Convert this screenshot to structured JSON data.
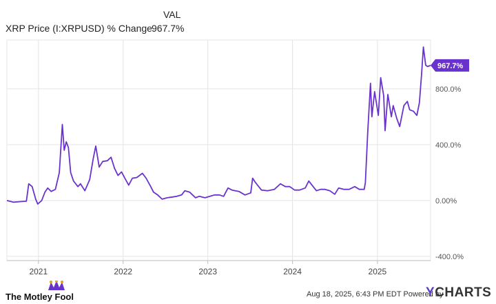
{
  "header": {
    "column_label": "VAL",
    "series_label": "XRP Price (I:XRPUSD) % Change",
    "series_value": "967.7%"
  },
  "colors": {
    "line": "#6a32cc",
    "grid": "#e4e4e4",
    "axis": "#bbbbbb",
    "badge": "#6a32cc"
  },
  "chart_data": {
    "type": "line",
    "title": "",
    "xlabel": "",
    "ylabel": "",
    "x_ticks": [
      "2021",
      "2022",
      "2023",
      "2024",
      "2025"
    ],
    "y_ticks": [
      "-400.0%",
      "0.00%",
      "400.0%",
      "800.0%"
    ],
    "y_tick_values": [
      -400,
      0,
      400,
      800
    ],
    "ylim": [
      -430,
      1150
    ],
    "xlim": [
      "2020-08-18",
      "2025-08-18"
    ],
    "last_value_label": "967.7%",
    "series": [
      {
        "name": "XRP Price (I:XRPUSD) % Change",
        "points": [
          [
            "2020-08-18",
            0
          ],
          [
            "2020-09-15",
            -12
          ],
          [
            "2020-10-15",
            -8
          ],
          [
            "2020-11-10",
            -5
          ],
          [
            "2020-11-20",
            120
          ],
          [
            "2020-12-05",
            100
          ],
          [
            "2020-12-20",
            10
          ],
          [
            "2020-12-29",
            -25
          ],
          [
            "2021-01-15",
            0
          ],
          [
            "2021-01-29",
            60
          ],
          [
            "2021-02-10",
            90
          ],
          [
            "2021-02-25",
            65
          ],
          [
            "2021-03-15",
            80
          ],
          [
            "2021-04-01",
            200
          ],
          [
            "2021-04-14",
            545
          ],
          [
            "2021-04-22",
            360
          ],
          [
            "2021-05-01",
            420
          ],
          [
            "2021-05-10",
            380
          ],
          [
            "2021-05-20",
            200
          ],
          [
            "2021-06-01",
            140
          ],
          [
            "2021-06-20",
            100
          ],
          [
            "2021-07-01",
            120
          ],
          [
            "2021-07-20",
            70
          ],
          [
            "2021-08-10",
            150
          ],
          [
            "2021-08-25",
            300
          ],
          [
            "2021-09-05",
            390
          ],
          [
            "2021-09-20",
            240
          ],
          [
            "2021-10-05",
            280
          ],
          [
            "2021-10-25",
            285
          ],
          [
            "2021-11-10",
            310
          ],
          [
            "2021-11-25",
            230
          ],
          [
            "2021-12-10",
            180
          ],
          [
            "2021-12-25",
            205
          ],
          [
            "2022-01-10",
            155
          ],
          [
            "2022-01-25",
            110
          ],
          [
            "2022-02-10",
            160
          ],
          [
            "2022-03-01",
            165
          ],
          [
            "2022-03-25",
            195
          ],
          [
            "2022-04-10",
            160
          ],
          [
            "2022-04-30",
            100
          ],
          [
            "2022-05-12",
            60
          ],
          [
            "2022-05-30",
            40
          ],
          [
            "2022-06-18",
            10
          ],
          [
            "2022-07-10",
            20
          ],
          [
            "2022-08-01",
            25
          ],
          [
            "2022-08-20",
            30
          ],
          [
            "2022-09-10",
            40
          ],
          [
            "2022-09-24",
            70
          ],
          [
            "2022-10-15",
            60
          ],
          [
            "2022-11-09",
            20
          ],
          [
            "2022-11-25",
            30
          ],
          [
            "2022-12-20",
            20
          ],
          [
            "2023-01-10",
            30
          ],
          [
            "2023-01-30",
            40
          ],
          [
            "2023-02-20",
            40
          ],
          [
            "2023-03-10",
            30
          ],
          [
            "2023-03-29",
            90
          ],
          [
            "2023-04-15",
            75
          ],
          [
            "2023-05-15",
            65
          ],
          [
            "2023-06-10",
            40
          ],
          [
            "2023-07-05",
            55
          ],
          [
            "2023-07-13",
            160
          ],
          [
            "2023-07-25",
            130
          ],
          [
            "2023-08-20",
            75
          ],
          [
            "2023-09-15",
            70
          ],
          [
            "2023-10-15",
            80
          ],
          [
            "2023-11-10",
            120
          ],
          [
            "2023-12-01",
            100
          ],
          [
            "2023-12-20",
            100
          ],
          [
            "2024-01-10",
            75
          ],
          [
            "2024-02-01",
            75
          ],
          [
            "2024-02-25",
            90
          ],
          [
            "2024-03-11",
            140
          ],
          [
            "2024-03-25",
            110
          ],
          [
            "2024-04-13",
            70
          ],
          [
            "2024-05-01",
            80
          ],
          [
            "2024-05-20",
            80
          ],
          [
            "2024-06-10",
            70
          ],
          [
            "2024-07-01",
            45
          ],
          [
            "2024-07-18",
            90
          ],
          [
            "2024-08-10",
            80
          ],
          [
            "2024-09-01",
            80
          ],
          [
            "2024-09-25",
            100
          ],
          [
            "2024-10-15",
            80
          ],
          [
            "2024-11-05",
            80
          ],
          [
            "2024-11-10",
            130
          ],
          [
            "2024-11-20",
            480
          ],
          [
            "2024-12-02",
            840
          ],
          [
            "2024-12-08",
            600
          ],
          [
            "2024-12-20",
            780
          ],
          [
            "2025-01-05",
            610
          ],
          [
            "2025-01-15",
            880
          ],
          [
            "2025-01-28",
            750
          ],
          [
            "2025-02-03",
            500
          ],
          [
            "2025-02-15",
            760
          ],
          [
            "2025-03-02",
            600
          ],
          [
            "2025-03-10",
            680
          ],
          [
            "2025-03-25",
            590
          ],
          [
            "2025-04-07",
            530
          ],
          [
            "2025-04-25",
            680
          ],
          [
            "2025-05-10",
            710
          ],
          [
            "2025-05-20",
            650
          ],
          [
            "2025-06-05",
            640
          ],
          [
            "2025-06-20",
            610
          ],
          [
            "2025-07-01",
            700
          ],
          [
            "2025-07-10",
            900
          ],
          [
            "2025-07-18",
            1100
          ],
          [
            "2025-07-28",
            970
          ],
          [
            "2025-08-05",
            960
          ],
          [
            "2025-08-18",
            968
          ]
        ]
      }
    ]
  },
  "footer": {
    "logo_text": "The Motley Fool",
    "timestamp": "Aug 18, 2025, 6:43 PM EDT",
    "powered_by": "Powered by",
    "brand_y": "Y",
    "brand_rest": "CHARTS"
  }
}
